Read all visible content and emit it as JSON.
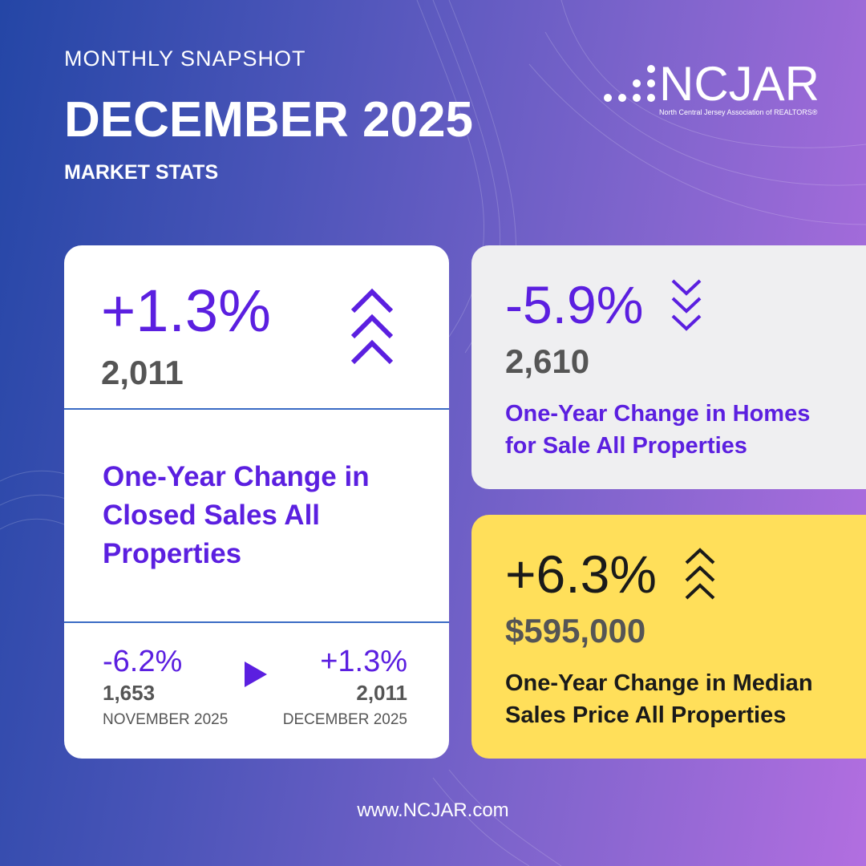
{
  "header": {
    "eyebrow": "MONTHLY SNAPSHOT",
    "title": "DECEMBER 2025",
    "subtitle": "MARKET STATS"
  },
  "logo": {
    "name": "NCJAR",
    "tagline": "North Central Jersey Association of REALTORS®"
  },
  "colors": {
    "accent": "#5b1fe0",
    "divider": "#3a6bc4",
    "highlight": "#ffdf5a",
    "card_gray": "#efeff1"
  },
  "closed_sales": {
    "change": "+1.3%",
    "value": "2,011",
    "label_lines": [
      "One-Year Change in",
      "Closed Sales All",
      "Properties"
    ],
    "trend_icon": "chevrons-up-icon",
    "comparison": {
      "prev_change": "-6.2%",
      "prev_value": "1,653",
      "prev_month": "NOVEMBER 2025",
      "curr_change": "+1.3%",
      "curr_value": "2,011",
      "curr_month": "DECEMBER 2025",
      "arrow_icon": "play-arrow-icon"
    }
  },
  "homes_for_sale": {
    "change": "-5.9%",
    "value": "2,610",
    "label_lines": [
      "One-Year Change in Homes",
      "for Sale All Properties"
    ],
    "trend_icon": "chevrons-down-icon"
  },
  "median_price": {
    "change": "+6.3%",
    "value": "$595,000",
    "label_lines": [
      "One-Year Change in Median",
      "Sales Price All Properties"
    ],
    "trend_icon": "chevrons-up-icon"
  },
  "footer": {
    "url": "www.NCJAR.com"
  }
}
